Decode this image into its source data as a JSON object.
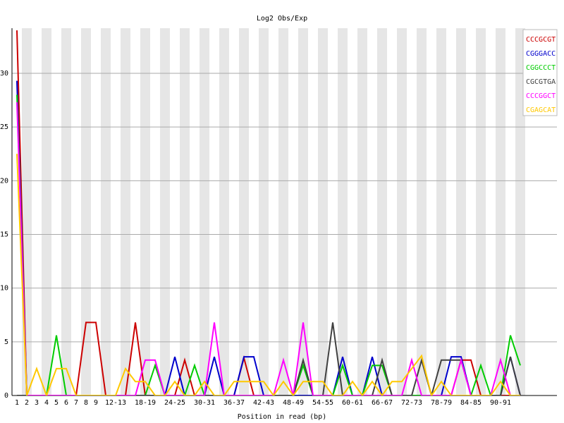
{
  "chart_data": {
    "type": "line",
    "title": "Log2 Obs/Exp",
    "x_label": "Position in read (bp)",
    "categories": [
      "1",
      "2",
      "3",
      "4",
      "5",
      "6",
      "7",
      "8",
      "9",
      null,
      "12-13",
      null,
      null,
      "18-19",
      null,
      null,
      "24-25",
      null,
      null,
      "30-31",
      null,
      null,
      "36-37",
      null,
      null,
      "42-43",
      null,
      null,
      "48-49",
      null,
      null,
      "54-55",
      null,
      null,
      "60-61",
      null,
      null,
      "66-67",
      null,
      null,
      "72-73",
      null,
      null,
      "78-79",
      null,
      null,
      "84-85",
      null,
      null,
      "90-91",
      null,
      null
    ],
    "ylim": [
      0,
      34.2
    ],
    "yticks": [
      0,
      5,
      10,
      15,
      20,
      25,
      30
    ],
    "grid": true,
    "legend": "top-right",
    "series": [
      {
        "name": "CCCGCGT",
        "color": "#cc0000",
        "values": [
          34,
          0,
          0,
          0,
          0,
          0,
          0,
          6.8,
          6.8,
          0,
          0,
          0,
          6.8,
          0,
          0,
          0,
          0,
          3.3,
          0,
          0,
          0,
          0,
          0,
          3.5,
          0,
          0,
          0,
          0,
          0,
          0,
          0,
          0,
          0,
          0,
          0,
          0,
          0,
          0,
          0,
          0,
          0,
          0,
          0,
          0,
          0,
          3.3,
          3.3,
          0,
          0,
          0,
          0,
          0
        ]
      },
      {
        "name": "CGGGACC",
        "color": "#0000cc",
        "values": [
          29.3,
          0,
          0,
          0,
          0,
          0,
          0,
          0,
          0,
          0,
          0,
          0,
          0,
          0,
          0,
          0,
          3.6,
          0,
          0,
          0,
          3.6,
          0,
          0,
          3.6,
          3.6,
          0,
          0,
          0,
          0,
          0,
          0,
          0,
          0,
          3.6,
          0,
          0,
          3.6,
          0,
          0,
          0,
          0,
          0,
          0,
          0,
          3.6,
          3.6,
          0,
          0,
          0,
          0,
          3.6,
          0
        ]
      },
      {
        "name": "CGGCCCT",
        "color": "#00cc00",
        "values": [
          28,
          0,
          0,
          0,
          5.6,
          0,
          0,
          0,
          0,
          0,
          0,
          0,
          0,
          0,
          2.8,
          0,
          0,
          0,
          2.8,
          0,
          0,
          0,
          0,
          0,
          0,
          0,
          0,
          0,
          0,
          2.8,
          0,
          0,
          0,
          2.8,
          0,
          0,
          2.8,
          2.8,
          0,
          0,
          0,
          0,
          0,
          0,
          0,
          0,
          0,
          2.8,
          0,
          0,
          5.6,
          2.8
        ]
      },
      {
        "name": "CGCGTGA",
        "color": "#404040",
        "values": [
          0,
          0,
          0,
          0,
          0,
          0,
          0,
          0,
          0,
          0,
          0,
          0,
          0,
          0,
          0,
          0,
          0,
          0,
          0,
          0,
          0,
          0,
          0,
          0,
          0,
          0,
          0,
          0,
          0,
          3.3,
          0,
          0,
          6.8,
          0,
          0,
          0,
          0,
          3.3,
          0,
          0,
          0,
          3.3,
          0,
          3.3,
          3.3,
          3.3,
          0,
          0,
          0,
          0,
          3.6,
          0
        ]
      },
      {
        "name": "CCCGGCT",
        "color": "#ff00ff",
        "values": [
          27.3,
          0,
          0,
          0,
          0,
          0,
          0,
          0,
          0,
          0,
          0,
          0,
          0,
          3.3,
          3.3,
          0,
          0,
          0,
          0,
          0,
          6.8,
          0,
          0,
          0,
          0,
          0,
          0,
          3.3,
          0,
          6.8,
          0,
          0,
          0,
          0,
          0,
          0,
          0,
          0,
          0,
          0,
          3.3,
          0,
          0,
          0,
          0,
          3.3,
          0,
          0,
          0,
          3.3,
          0,
          0
        ]
      },
      {
        "name": "CGAGCAT",
        "color": "#ffc800",
        "values": [
          22.5,
          0,
          2.5,
          0,
          2.5,
          2.5,
          0,
          0,
          0,
          0,
          0,
          2.5,
          1.3,
          1.3,
          0,
          0,
          1.3,
          0,
          0,
          1.3,
          0,
          0,
          1.3,
          1.3,
          1.3,
          1.3,
          0,
          1.3,
          0,
          1.3,
          1.3,
          1.3,
          0,
          0,
          1.3,
          0,
          1.3,
          0,
          1.3,
          1.3,
          2.5,
          3.7,
          0,
          1.3,
          0,
          0,
          0,
          0,
          0,
          1.3,
          0,
          0
        ]
      }
    ]
  }
}
